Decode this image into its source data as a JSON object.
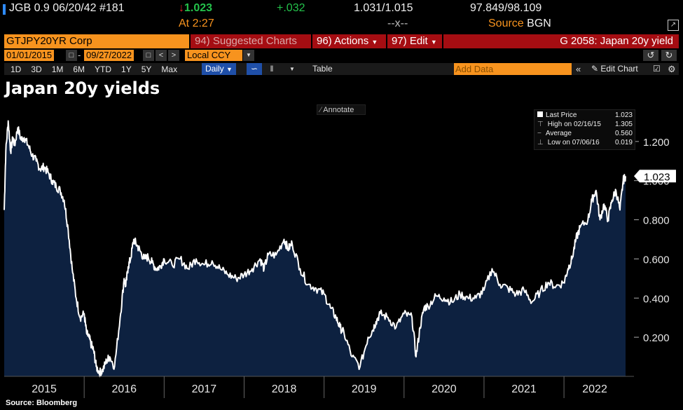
{
  "quote_bar": {
    "ticker_line": "JGB 0.9 06/20/42 #181",
    "last_price": "1.023",
    "change": "+.032",
    "bid_ask": "1.031/1.015",
    "price_bid_ask": "97.849/98.109",
    "at_label": "At",
    "at_time": "2:27",
    "x_mark": "--x--",
    "source_label": "Source",
    "source_value": "BGN"
  },
  "command_bar": {
    "security": "GTJPY20YR Corp",
    "suggested": "94) Suggested Charts",
    "actions": "96) Actions",
    "edit": "97) Edit",
    "chart_code": "G 2058: Japan 20y yield"
  },
  "date_bar": {
    "start": "01/01/2015",
    "end": "09/27/2022",
    "currency": "Local CCY"
  },
  "toolbar": {
    "ranges": [
      "1D",
      "3D",
      "1M",
      "6M",
      "YTD",
      "1Y",
      "5Y",
      "Max"
    ],
    "frequency": "Daily",
    "table_label": "Table",
    "add_data_placeholder": "Add Data",
    "edit_chart": "Edit Chart"
  },
  "annotate_label": "Annotate",
  "legend": {
    "last_price_label": "Last Price",
    "last_price_value": "1.023",
    "high_label": "High on 02/16/15",
    "high_value": "1.305",
    "average_label": "Average",
    "average_value": "0.560",
    "low_label": "Low on 07/06/16",
    "low_value": "0.019"
  },
  "source_note": "Source: Bloomberg",
  "colors": {
    "area_fill": "#0d2140",
    "line": "#ffffff",
    "orange": "#f7931e",
    "red": "#a50d12",
    "green": "#24c24b",
    "down_red": "#e8262a"
  },
  "chart_data": {
    "type": "area",
    "title": "Japan 20y yields",
    "xlabel": "",
    "ylabel": "",
    "ylim": [
      0.0,
      1.4
    ],
    "yticks": [
      0.2,
      0.4,
      0.6,
      0.8,
      1.0,
      1.2
    ],
    "ytick_labels": [
      "0.200",
      "0.400",
      "0.600",
      "0.800",
      "1.000",
      "1.200"
    ],
    "xlim": [
      2015.0,
      2022.77
    ],
    "year_labels": [
      "2015",
      "2016",
      "2017",
      "2018",
      "2019",
      "2020",
      "2021",
      "2022"
    ],
    "last_value_label": "1.023",
    "x": [
      2015.0,
      2015.02,
      2015.05,
      2015.08,
      2015.11,
      2015.13,
      2015.17,
      2015.21,
      2015.25,
      2015.3,
      2015.35,
      2015.4,
      2015.45,
      2015.5,
      2015.55,
      2015.6,
      2015.65,
      2015.7,
      2015.75,
      2015.8,
      2015.85,
      2015.9,
      2015.95,
      2016.0,
      2016.03,
      2016.06,
      2016.09,
      2016.12,
      2016.15,
      2016.19,
      2016.23,
      2016.28,
      2016.32,
      2016.38,
      2016.45,
      2016.5,
      2016.52,
      2016.55,
      2016.58,
      2016.62,
      2016.66,
      2016.7,
      2016.75,
      2016.8,
      2016.85,
      2016.9,
      2016.95,
      2017.0,
      2017.1,
      2017.2,
      2017.3,
      2017.4,
      2017.5,
      2017.6,
      2017.7,
      2017.8,
      2017.9,
      2018.0,
      2018.1,
      2018.2,
      2018.25,
      2018.3,
      2018.4,
      2018.5,
      2018.55,
      2018.6,
      2018.7,
      2018.8,
      2018.9,
      2019.0,
      2019.08,
      2019.15,
      2019.2,
      2019.25,
      2019.35,
      2019.45,
      2019.55,
      2019.6,
      2019.65,
      2019.7,
      2019.8,
      2019.9,
      2020.0,
      2020.1,
      2020.15,
      2020.2,
      2020.25,
      2020.3,
      2020.4,
      2020.5,
      2020.6,
      2020.7,
      2020.8,
      2020.9,
      2021.0,
      2021.1,
      2021.2,
      2021.3,
      2021.4,
      2021.5,
      2021.6,
      2021.7,
      2021.8,
      2021.9,
      2022.0,
      2022.05,
      2022.1,
      2022.15,
      2022.2,
      2022.3,
      2022.35,
      2022.4,
      2022.45,
      2022.5,
      2022.55,
      2022.6,
      2022.65,
      2022.7,
      2022.74,
      2022.77
    ],
    "values": [
      0.85,
      1.15,
      1.305,
      1.15,
      1.22,
      1.18,
      1.27,
      1.21,
      1.22,
      1.18,
      1.13,
      1.1,
      1.06,
      1.07,
      1.04,
      1.0,
      0.97,
      0.95,
      0.9,
      0.75,
      0.55,
      0.4,
      0.3,
      0.32,
      0.22,
      0.2,
      0.16,
      0.13,
      0.05,
      0.019,
      0.03,
      0.08,
      0.1,
      0.05,
      0.3,
      0.5,
      0.46,
      0.56,
      0.6,
      0.7,
      0.67,
      0.64,
      0.6,
      0.61,
      0.58,
      0.55,
      0.56,
      0.6,
      0.57,
      0.6,
      0.55,
      0.6,
      0.57,
      0.59,
      0.55,
      0.52,
      0.5,
      0.52,
      0.55,
      0.6,
      0.55,
      0.62,
      0.62,
      0.7,
      0.65,
      0.68,
      0.55,
      0.47,
      0.45,
      0.42,
      0.35,
      0.3,
      0.25,
      0.22,
      0.1,
      0.05,
      0.2,
      0.23,
      0.28,
      0.32,
      0.3,
      0.25,
      0.32,
      0.3,
      0.1,
      0.25,
      0.35,
      0.36,
      0.41,
      0.4,
      0.38,
      0.42,
      0.4,
      0.4,
      0.44,
      0.55,
      0.47,
      0.45,
      0.42,
      0.44,
      0.38,
      0.43,
      0.48,
      0.46,
      0.48,
      0.55,
      0.6,
      0.7,
      0.76,
      0.8,
      0.9,
      0.95,
      0.8,
      0.88,
      0.8,
      0.9,
      0.95,
      0.85,
      1.0,
      1.023
    ]
  }
}
